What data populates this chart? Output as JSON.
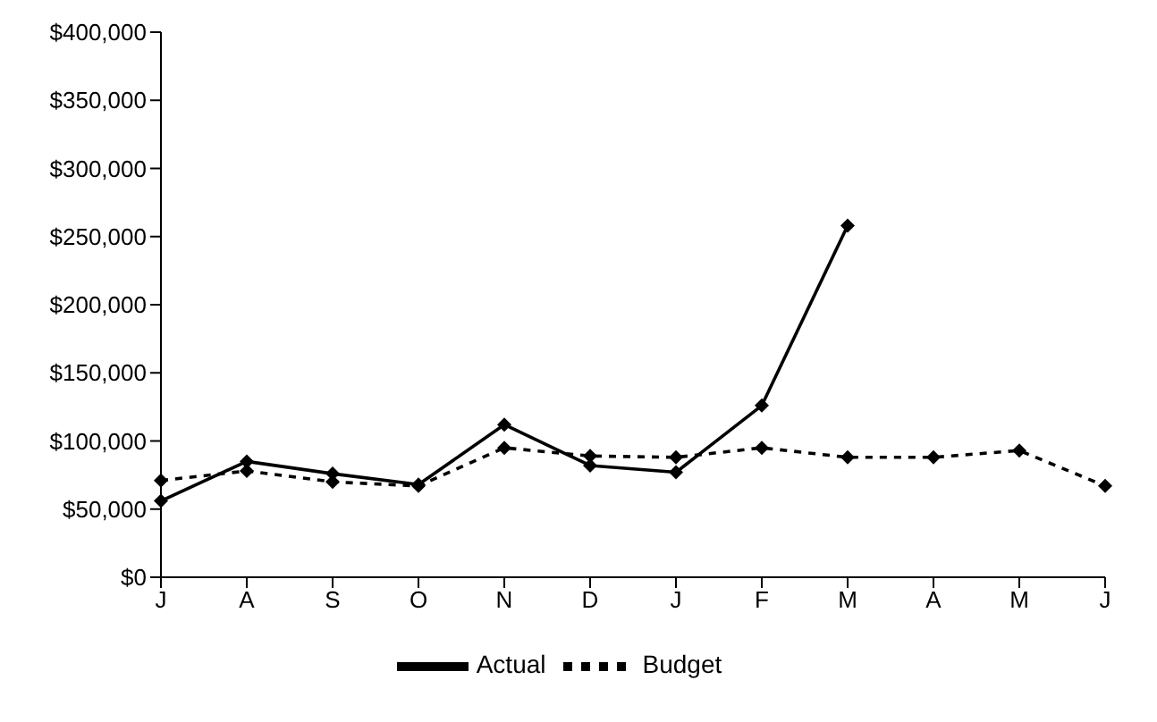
{
  "chart_data": {
    "type": "line",
    "categories": [
      "J",
      "A",
      "S",
      "O",
      "N",
      "D",
      "J",
      "F",
      "M",
      "A",
      "M",
      "J"
    ],
    "series": [
      {
        "name": "Budget",
        "color": "#000000",
        "line_style": "dashed",
        "values": [
          71000,
          78000,
          70000,
          67000,
          95000,
          89000,
          88000,
          95000,
          88000,
          88000,
          93000,
          67000
        ]
      },
      {
        "name": "Actual",
        "color": "#000000",
        "line_style": "solid",
        "values": [
          56000,
          85000,
          76000,
          68000,
          112000,
          82000,
          77000,
          126000,
          258000,
          null,
          null,
          null
        ]
      }
    ],
    "ylim": [
      0,
      400000
    ],
    "yticks": [
      {
        "value": 0,
        "label": "$0"
      },
      {
        "value": 50000,
        "label": "$50,000"
      },
      {
        "value": 100000,
        "label": "$100,000"
      },
      {
        "value": 150000,
        "label": "$150,000"
      },
      {
        "value": 200000,
        "label": "$200,000"
      },
      {
        "value": 250000,
        "label": "$250,000"
      },
      {
        "value": 300000,
        "label": "$300,000"
      },
      {
        "value": 350000,
        "label": "$350,000"
      },
      {
        "value": 400000,
        "label": "$400,000"
      }
    ],
    "marker": "diamond",
    "legend": "bottom",
    "grid": false
  }
}
